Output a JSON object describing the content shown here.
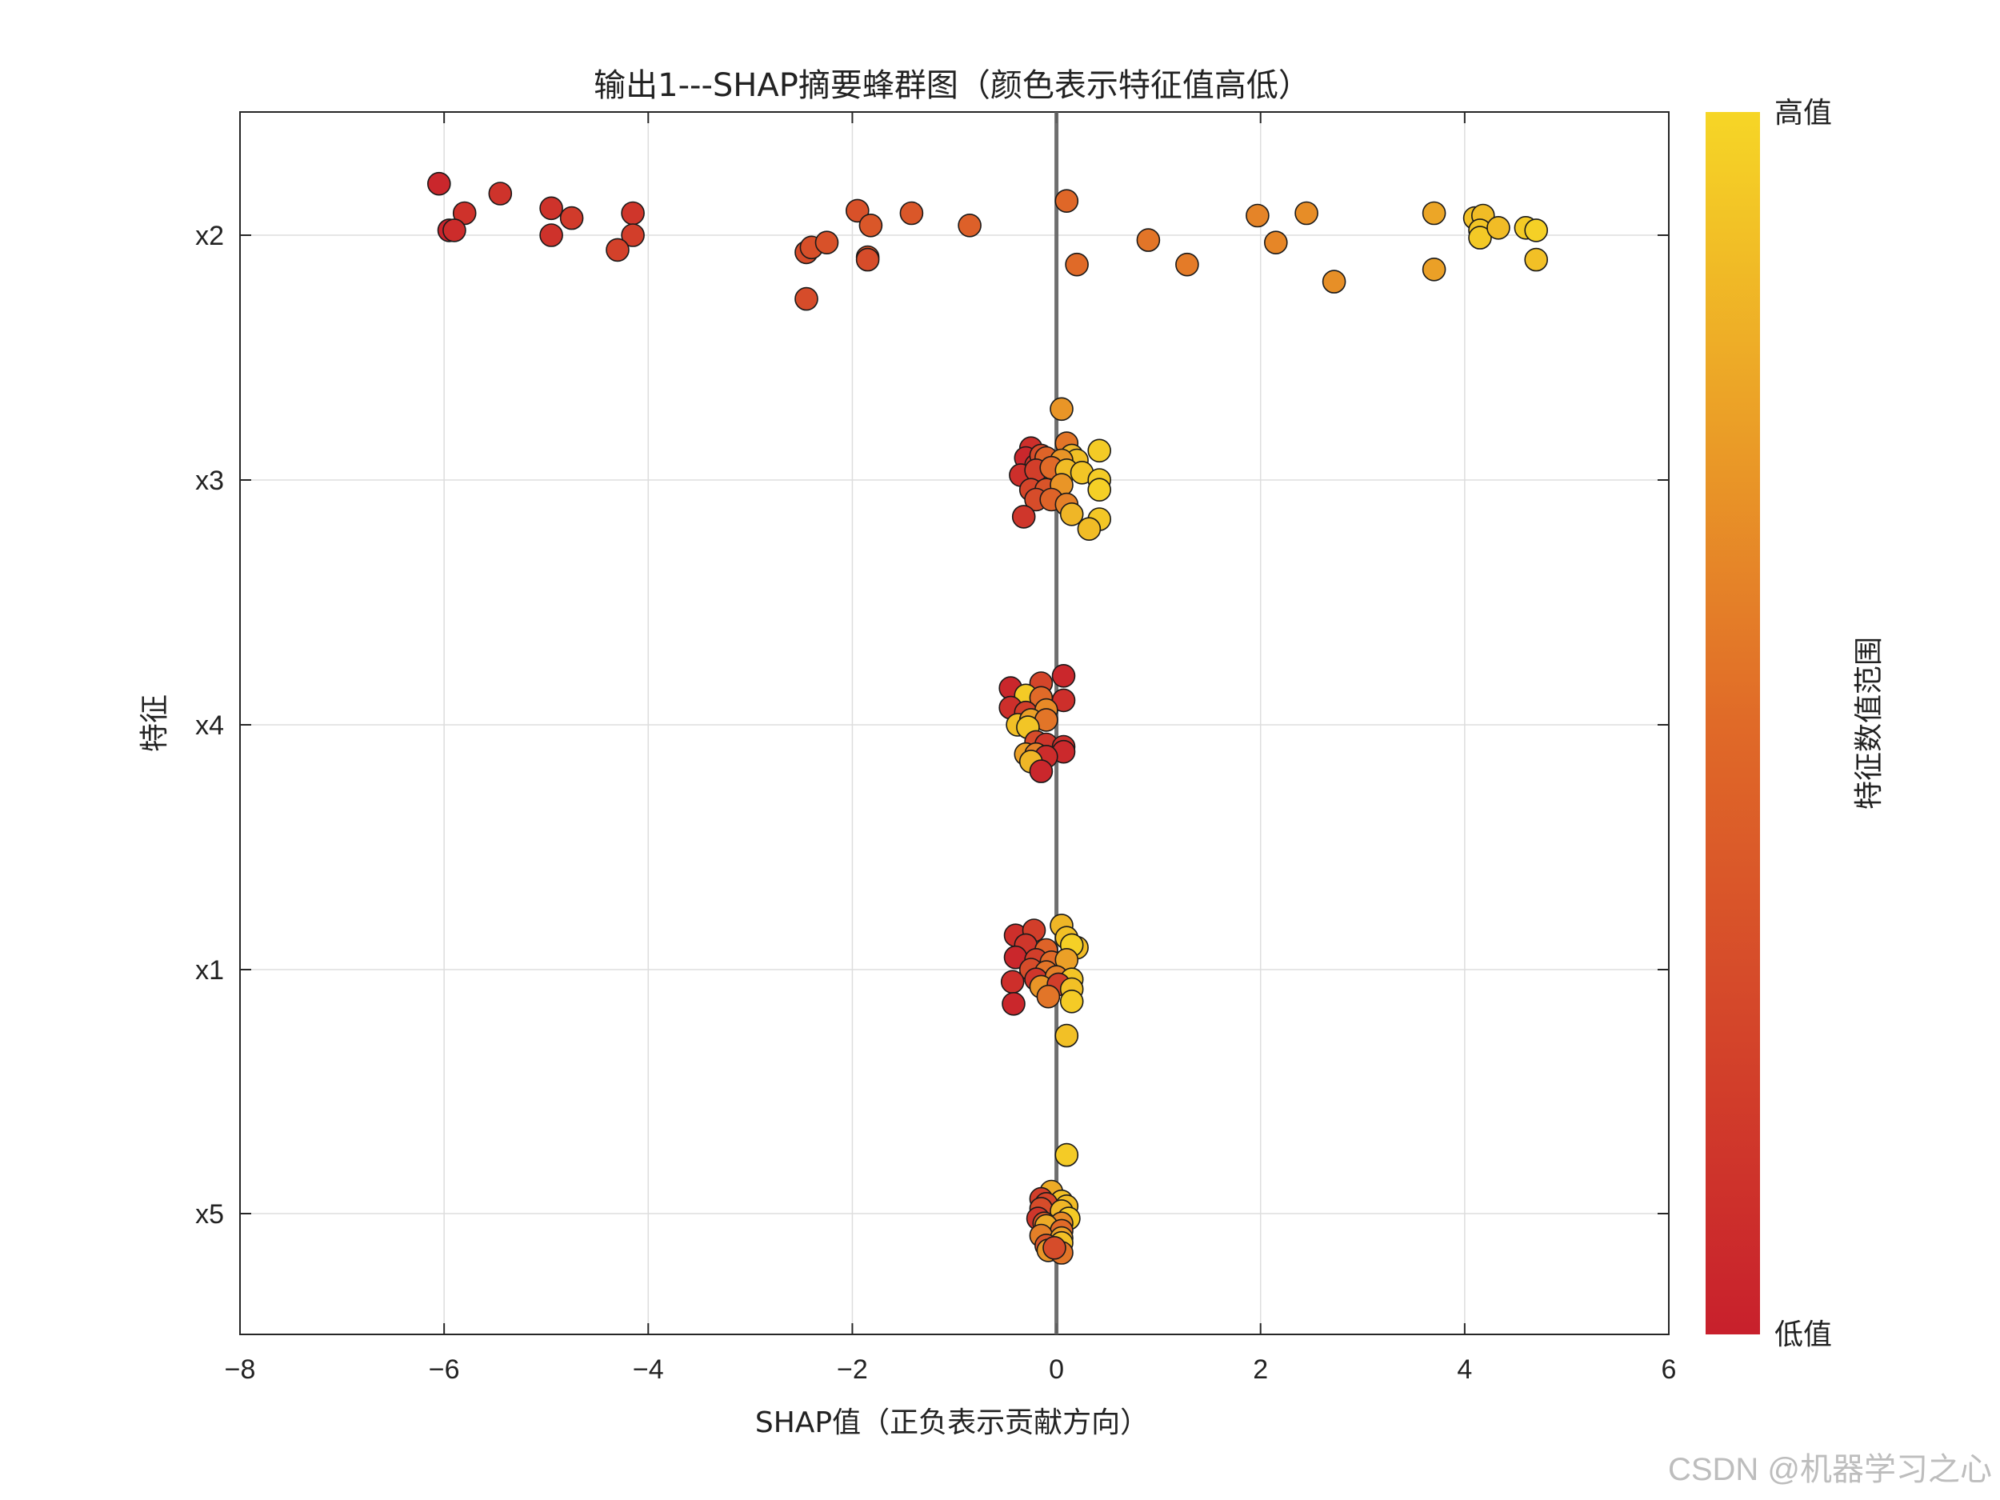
{
  "chart_data": {
    "type": "scatter",
    "subtype": "shap-beeswarm",
    "title": "输出1---SHAP摘要蜂群图（颜色表示特征值高低）",
    "xlabel": "SHAP值（正负表示贡献方向）",
    "ylabel": "特征",
    "xlim": [
      -8,
      6
    ],
    "xticks": [
      -8,
      -6,
      -4,
      -2,
      0,
      2,
      4,
      6
    ],
    "xtick_labels": [
      "−8",
      "−6",
      "−4",
      "−2",
      "0",
      "2",
      "4",
      "6"
    ],
    "features": [
      "x2",
      "x3",
      "x4",
      "x1",
      "x5"
    ],
    "grid": true,
    "zero_line": 0,
    "colorbar": {
      "label": "特征数值范围",
      "high_label": "高值",
      "low_label": "低值",
      "low_color": "#c8202c",
      "mid_color": "#e06a28",
      "high_color": "#f6d626"
    },
    "series": [
      {
        "feature": "x2",
        "points": [
          {
            "shap": -6.05,
            "jitter": 0.21,
            "value": 0.05
          },
          {
            "shap": -5.8,
            "jitter": 0.09,
            "value": 0.12
          },
          {
            "shap": -5.45,
            "jitter": 0.17,
            "value": 0.13
          },
          {
            "shap": -5.95,
            "jitter": 0.02,
            "value": 0.03
          },
          {
            "shap": -5.9,
            "jitter": 0.02,
            "value": 0.08
          },
          {
            "shap": -4.95,
            "jitter": 0.11,
            "value": 0.13
          },
          {
            "shap": -4.75,
            "jitter": 0.07,
            "value": 0.18
          },
          {
            "shap": -4.95,
            "jitter": 0.0,
            "value": 0.12
          },
          {
            "shap": -4.15,
            "jitter": 0.09,
            "value": 0.15
          },
          {
            "shap": -4.15,
            "jitter": 0.0,
            "value": 0.2
          },
          {
            "shap": -4.3,
            "jitter": -0.06,
            "value": 0.22
          },
          {
            "shap": -2.45,
            "jitter": -0.07,
            "value": 0.3
          },
          {
            "shap": -2.4,
            "jitter": -0.05,
            "value": 0.32
          },
          {
            "shap": -2.25,
            "jitter": -0.03,
            "value": 0.33
          },
          {
            "shap": -2.45,
            "jitter": -0.26,
            "value": 0.3
          },
          {
            "shap": -1.95,
            "jitter": 0.1,
            "value": 0.33
          },
          {
            "shap": -1.82,
            "jitter": 0.04,
            "value": 0.37
          },
          {
            "shap": -1.85,
            "jitter": -0.09,
            "value": 0.36
          },
          {
            "shap": -1.85,
            "jitter": -0.1,
            "value": 0.3
          },
          {
            "shap": -1.42,
            "jitter": 0.09,
            "value": 0.37
          },
          {
            "shap": -0.85,
            "jitter": 0.04,
            "value": 0.43
          },
          {
            "shap": 0.1,
            "jitter": 0.14,
            "value": 0.48
          },
          {
            "shap": 0.2,
            "jitter": -0.12,
            "value": 0.5
          },
          {
            "shap": 0.9,
            "jitter": -0.02,
            "value": 0.55
          },
          {
            "shap": 1.28,
            "jitter": -0.12,
            "value": 0.58
          },
          {
            "shap": 1.97,
            "jitter": 0.08,
            "value": 0.62
          },
          {
            "shap": 2.15,
            "jitter": -0.03,
            "value": 0.63
          },
          {
            "shap": 2.45,
            "jitter": 0.09,
            "value": 0.66
          },
          {
            "shap": 2.72,
            "jitter": -0.19,
            "value": 0.67
          },
          {
            "shap": 3.7,
            "jitter": 0.09,
            "value": 0.78
          },
          {
            "shap": 3.7,
            "jitter": -0.14,
            "value": 0.75
          },
          {
            "shap": 4.1,
            "jitter": 0.07,
            "value": 0.9
          },
          {
            "shap": 4.18,
            "jitter": 0.08,
            "value": 0.88
          },
          {
            "shap": 4.15,
            "jitter": 0.02,
            "value": 0.92
          },
          {
            "shap": 4.15,
            "jitter": -0.01,
            "value": 0.94
          },
          {
            "shap": 4.33,
            "jitter": 0.03,
            "value": 0.88
          },
          {
            "shap": 4.6,
            "jitter": 0.03,
            "value": 0.95
          },
          {
            "shap": 4.7,
            "jitter": 0.02,
            "value": 0.97
          },
          {
            "shap": 4.7,
            "jitter": -0.1,
            "value": 0.9
          }
        ]
      },
      {
        "feature": "x3",
        "points": [
          {
            "shap": 0.05,
            "jitter": 0.29,
            "value": 0.7
          },
          {
            "shap": -0.25,
            "jitter": 0.13,
            "value": 0.1
          },
          {
            "shap": -0.3,
            "jitter": 0.09,
            "value": 0.05
          },
          {
            "shap": -0.2,
            "jitter": 0.06,
            "value": 0.15
          },
          {
            "shap": -0.15,
            "jitter": 0.1,
            "value": 0.3
          },
          {
            "shap": -0.1,
            "jitter": 0.09,
            "value": 0.45
          },
          {
            "shap": 0.1,
            "jitter": 0.15,
            "value": 0.55
          },
          {
            "shap": 0.15,
            "jitter": 0.1,
            "value": 0.85
          },
          {
            "shap": 0.42,
            "jitter": 0.12,
            "value": 0.95
          },
          {
            "shap": 0.2,
            "jitter": 0.08,
            "value": 0.9
          },
          {
            "shap": 0.05,
            "jitter": 0.08,
            "value": 0.7
          },
          {
            "shap": -0.35,
            "jitter": 0.02,
            "value": 0.1
          },
          {
            "shap": -0.2,
            "jitter": 0.04,
            "value": 0.2
          },
          {
            "shap": -0.05,
            "jitter": 0.05,
            "value": 0.5
          },
          {
            "shap": 0.1,
            "jitter": 0.04,
            "value": 0.88
          },
          {
            "shap": 0.25,
            "jitter": 0.03,
            "value": 0.92
          },
          {
            "shap": 0.42,
            "jitter": 0.0,
            "value": 0.95
          },
          {
            "shap": -0.25,
            "jitter": -0.04,
            "value": 0.25
          },
          {
            "shap": -0.1,
            "jitter": -0.04,
            "value": 0.35
          },
          {
            "shap": 0.05,
            "jitter": -0.02,
            "value": 0.7
          },
          {
            "shap": 0.42,
            "jitter": -0.04,
            "value": 0.97
          },
          {
            "shap": -0.2,
            "jitter": -0.08,
            "value": 0.3
          },
          {
            "shap": -0.05,
            "jitter": -0.08,
            "value": 0.45
          },
          {
            "shap": 0.1,
            "jitter": -0.1,
            "value": 0.6
          },
          {
            "shap": -0.32,
            "jitter": -0.15,
            "value": 0.15
          },
          {
            "shap": 0.15,
            "jitter": -0.14,
            "value": 0.85
          },
          {
            "shap": 0.42,
            "jitter": -0.16,
            "value": 0.93
          },
          {
            "shap": 0.32,
            "jitter": -0.2,
            "value": 0.88
          }
        ]
      },
      {
        "feature": "x4",
        "points": [
          {
            "shap": 0.07,
            "jitter": 0.2,
            "value": 0.05
          },
          {
            "shap": -0.45,
            "jitter": 0.15,
            "value": 0.05
          },
          {
            "shap": -0.15,
            "jitter": 0.17,
            "value": 0.25
          },
          {
            "shap": -0.3,
            "jitter": 0.12,
            "value": 0.95
          },
          {
            "shap": -0.15,
            "jitter": 0.11,
            "value": 0.5
          },
          {
            "shap": 0.07,
            "jitter": 0.1,
            "value": 0.1
          },
          {
            "shap": -0.45,
            "jitter": 0.07,
            "value": 0.1
          },
          {
            "shap": -0.3,
            "jitter": 0.05,
            "value": 0.2
          },
          {
            "shap": -0.1,
            "jitter": 0.06,
            "value": 0.65
          },
          {
            "shap": -0.38,
            "jitter": 0.0,
            "value": 0.9
          },
          {
            "shap": -0.25,
            "jitter": 0.02,
            "value": 0.75
          },
          {
            "shap": -0.1,
            "jitter": 0.02,
            "value": 0.55
          },
          {
            "shap": -0.28,
            "jitter": -0.01,
            "value": 0.92
          },
          {
            "shap": -0.2,
            "jitter": -0.07,
            "value": 0.3
          },
          {
            "shap": -0.1,
            "jitter": -0.08,
            "value": 0.15
          },
          {
            "shap": 0.07,
            "jitter": -0.09,
            "value": 0.1
          },
          {
            "shap": 0.07,
            "jitter": -0.11,
            "value": 0.06
          },
          {
            "shap": -0.3,
            "jitter": -0.12,
            "value": 0.75
          },
          {
            "shap": -0.2,
            "jitter": -0.12,
            "value": 0.6
          },
          {
            "shap": -0.1,
            "jitter": -0.13,
            "value": 0.08
          },
          {
            "shap": -0.25,
            "jitter": -0.15,
            "value": 0.85
          },
          {
            "shap": -0.15,
            "jitter": -0.19,
            "value": 0.05
          }
        ]
      },
      {
        "feature": "x1",
        "points": [
          {
            "shap": 0.05,
            "jitter": 0.18,
            "value": 0.85
          },
          {
            "shap": -0.4,
            "jitter": 0.14,
            "value": 0.1
          },
          {
            "shap": -0.22,
            "jitter": 0.16,
            "value": 0.2
          },
          {
            "shap": 0.1,
            "jitter": 0.13,
            "value": 0.9
          },
          {
            "shap": -0.3,
            "jitter": 0.1,
            "value": 0.15
          },
          {
            "shap": -0.1,
            "jitter": 0.08,
            "value": 0.45
          },
          {
            "shap": 0.2,
            "jitter": 0.09,
            "value": 0.88
          },
          {
            "shap": 0.15,
            "jitter": 0.1,
            "value": 0.97
          },
          {
            "shap": -0.4,
            "jitter": 0.05,
            "value": 0.05
          },
          {
            "shap": -0.2,
            "jitter": 0.04,
            "value": 0.2
          },
          {
            "shap": -0.05,
            "jitter": 0.03,
            "value": 0.5
          },
          {
            "shap": 0.1,
            "jitter": 0.04,
            "value": 0.75
          },
          {
            "shap": -0.25,
            "jitter": 0.0,
            "value": 0.3
          },
          {
            "shap": -0.1,
            "jitter": -0.01,
            "value": 0.55
          },
          {
            "shap": -0.43,
            "jitter": -0.05,
            "value": 0.1
          },
          {
            "shap": -0.2,
            "jitter": -0.04,
            "value": 0.15
          },
          {
            "shap": 0.0,
            "jitter": -0.03,
            "value": 0.6
          },
          {
            "shap": 0.15,
            "jitter": -0.04,
            "value": 0.92
          },
          {
            "shap": -0.15,
            "jitter": -0.07,
            "value": 0.7
          },
          {
            "shap": 0.02,
            "jitter": -0.06,
            "value": 0.2
          },
          {
            "shap": 0.15,
            "jitter": -0.08,
            "value": 0.9
          },
          {
            "shap": -0.42,
            "jitter": -0.14,
            "value": 0.05
          },
          {
            "shap": -0.08,
            "jitter": -0.11,
            "value": 0.55
          },
          {
            "shap": 0.15,
            "jitter": -0.13,
            "value": 0.95
          },
          {
            "shap": 0.1,
            "jitter": -0.27,
            "value": 0.9
          }
        ]
      },
      {
        "feature": "x5",
        "points": [
          {
            "shap": 0.1,
            "jitter": 0.24,
            "value": 0.95
          },
          {
            "shap": -0.05,
            "jitter": 0.09,
            "value": 0.8
          },
          {
            "shap": -0.15,
            "jitter": 0.06,
            "value": 0.2
          },
          {
            "shap": 0.05,
            "jitter": 0.05,
            "value": 0.9
          },
          {
            "shap": -0.1,
            "jitter": 0.04,
            "value": 0.25
          },
          {
            "shap": 0.1,
            "jitter": 0.03,
            "value": 0.88
          },
          {
            "shap": -0.15,
            "jitter": 0.02,
            "value": 0.3
          },
          {
            "shap": 0.05,
            "jitter": 0.01,
            "value": 0.85
          },
          {
            "shap": -0.18,
            "jitter": -0.02,
            "value": 0.15
          },
          {
            "shap": 0.12,
            "jitter": -0.02,
            "value": 0.95
          },
          {
            "shap": -0.12,
            "jitter": -0.04,
            "value": 0.4
          },
          {
            "shap": 0.05,
            "jitter": -0.04,
            "value": 0.65
          },
          {
            "shap": -0.1,
            "jitter": -0.05,
            "value": 0.8
          },
          {
            "shap": 0.05,
            "jitter": -0.07,
            "value": 0.5
          },
          {
            "shap": -0.15,
            "jitter": -0.09,
            "value": 0.6
          },
          {
            "shap": 0.05,
            "jitter": -0.1,
            "value": 0.75
          },
          {
            "shap": -0.1,
            "jitter": -0.13,
            "value": 0.35
          },
          {
            "shap": 0.05,
            "jitter": -0.12,
            "value": 0.9
          },
          {
            "shap": -0.08,
            "jitter": -0.15,
            "value": 0.7
          },
          {
            "shap": 0.05,
            "jitter": -0.16,
            "value": 0.55
          },
          {
            "shap": -0.02,
            "jitter": -0.14,
            "value": 0.3
          }
        ]
      }
    ]
  },
  "watermark": "CSDN @机器学习之心"
}
